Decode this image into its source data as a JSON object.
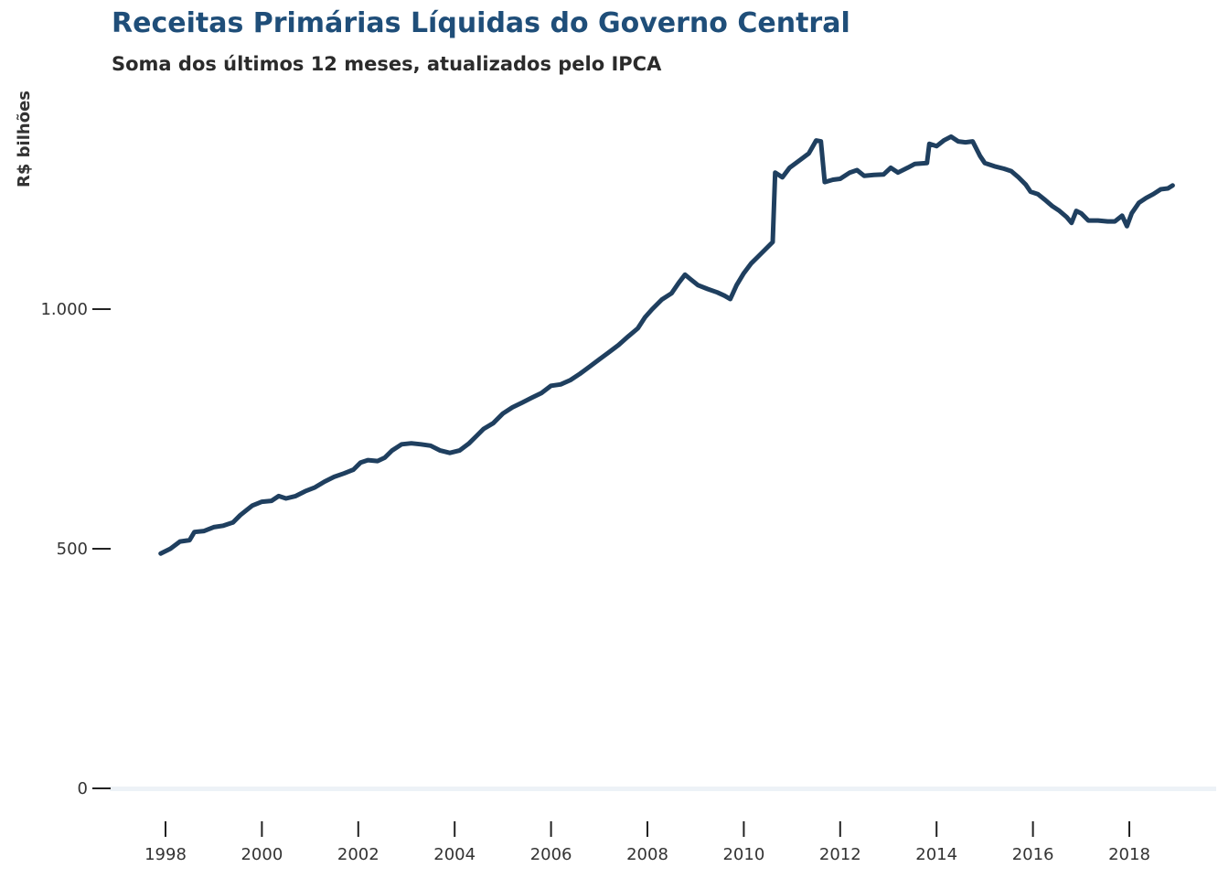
{
  "chart_data": {
    "type": "line",
    "title": "Receitas Primárias Líquidas do Governo Central",
    "subtitle": "Soma dos últimos 12 meses, atualizados pelo IPCA",
    "ylabel": "R$ bilhões",
    "xlabel": "",
    "ylim": [
      0,
      1400
    ],
    "xlim": [
      1997.5,
      2019.0
    ],
    "y_ticks": [
      0,
      500,
      1000
    ],
    "y_tick_labels": [
      "0",
      "500",
      "1.000"
    ],
    "x_ticks": [
      1998,
      2000,
      2002,
      2004,
      2006,
      2008,
      2010,
      2012,
      2014,
      2016,
      2018
    ],
    "x_tick_labels": [
      "1998",
      "2000",
      "2002",
      "2004",
      "2006",
      "2008",
      "2010",
      "2012",
      "2014",
      "2016",
      "2018"
    ],
    "grid": false,
    "legend": "none",
    "series": [
      {
        "color": "#1f3f5f",
        "points": [
          [
            1997.9,
            490
          ],
          [
            1998.1,
            500
          ],
          [
            1998.3,
            515
          ],
          [
            1998.5,
            518
          ],
          [
            1998.6,
            535
          ],
          [
            1998.8,
            537
          ],
          [
            1999.0,
            545
          ],
          [
            1999.2,
            548
          ],
          [
            1999.4,
            555
          ],
          [
            1999.55,
            570
          ],
          [
            1999.65,
            578
          ],
          [
            1999.8,
            590
          ],
          [
            2000.0,
            598
          ],
          [
            2000.2,
            600
          ],
          [
            2000.35,
            610
          ],
          [
            2000.5,
            605
          ],
          [
            2000.7,
            610
          ],
          [
            2000.9,
            620
          ],
          [
            2001.1,
            628
          ],
          [
            2001.3,
            640
          ],
          [
            2001.5,
            650
          ],
          [
            2001.7,
            657
          ],
          [
            2001.9,
            665
          ],
          [
            2002.05,
            680
          ],
          [
            2002.2,
            685
          ],
          [
            2002.4,
            683
          ],
          [
            2002.55,
            690
          ],
          [
            2002.7,
            705
          ],
          [
            2002.9,
            718
          ],
          [
            2003.1,
            720
          ],
          [
            2003.3,
            718
          ],
          [
            2003.5,
            715
          ],
          [
            2003.7,
            705
          ],
          [
            2003.9,
            700
          ],
          [
            2004.1,
            705
          ],
          [
            2004.3,
            720
          ],
          [
            2004.45,
            735
          ],
          [
            2004.6,
            750
          ],
          [
            2004.8,
            762
          ],
          [
            2005.0,
            782
          ],
          [
            2005.2,
            795
          ],
          [
            2005.4,
            805
          ],
          [
            2005.6,
            815
          ],
          [
            2005.8,
            825
          ],
          [
            2006.0,
            840
          ],
          [
            2006.2,
            843
          ],
          [
            2006.4,
            852
          ],
          [
            2006.6,
            865
          ],
          [
            2006.8,
            880
          ],
          [
            2007.0,
            895
          ],
          [
            2007.2,
            910
          ],
          [
            2007.4,
            925
          ],
          [
            2007.6,
            943
          ],
          [
            2007.8,
            960
          ],
          [
            2007.95,
            983
          ],
          [
            2008.1,
            1000
          ],
          [
            2008.3,
            1020
          ],
          [
            2008.5,
            1033
          ],
          [
            2008.65,
            1055
          ],
          [
            2008.78,
            1072
          ],
          [
            2008.9,
            1062
          ],
          [
            2009.05,
            1050
          ],
          [
            2009.25,
            1042
          ],
          [
            2009.45,
            1035
          ],
          [
            2009.6,
            1028
          ],
          [
            2009.72,
            1021
          ],
          [
            2009.85,
            1050
          ],
          [
            2010.0,
            1075
          ],
          [
            2010.15,
            1095
          ],
          [
            2010.3,
            1110
          ],
          [
            2010.45,
            1125
          ],
          [
            2010.6,
            1140
          ],
          [
            2010.65,
            1285
          ],
          [
            2010.8,
            1275
          ],
          [
            2010.95,
            1295
          ],
          [
            2011.15,
            1310
          ],
          [
            2011.35,
            1325
          ],
          [
            2011.5,
            1352
          ],
          [
            2011.6,
            1350
          ],
          [
            2011.68,
            1265
          ],
          [
            2011.85,
            1270
          ],
          [
            2012.0,
            1272
          ],
          [
            2012.2,
            1285
          ],
          [
            2012.35,
            1290
          ],
          [
            2012.5,
            1278
          ],
          [
            2012.7,
            1280
          ],
          [
            2012.9,
            1281
          ],
          [
            2013.05,
            1295
          ],
          [
            2013.2,
            1285
          ],
          [
            2013.4,
            1295
          ],
          [
            2013.55,
            1303
          ],
          [
            2013.8,
            1305
          ],
          [
            2013.85,
            1345
          ],
          [
            2014.0,
            1340
          ],
          [
            2014.15,
            1352
          ],
          [
            2014.3,
            1360
          ],
          [
            2014.45,
            1350
          ],
          [
            2014.6,
            1348
          ],
          [
            2014.75,
            1350
          ],
          [
            2014.9,
            1320
          ],
          [
            2015.0,
            1305
          ],
          [
            2015.2,
            1298
          ],
          [
            2015.4,
            1293
          ],
          [
            2015.55,
            1288
          ],
          [
            2015.7,
            1275
          ],
          [
            2015.85,
            1260
          ],
          [
            2015.95,
            1245
          ],
          [
            2016.1,
            1240
          ],
          [
            2016.25,
            1228
          ],
          [
            2016.4,
            1215
          ],
          [
            2016.55,
            1205
          ],
          [
            2016.7,
            1192
          ],
          [
            2016.8,
            1180
          ],
          [
            2016.9,
            1205
          ],
          [
            2017.0,
            1200
          ],
          [
            2017.15,
            1185
          ],
          [
            2017.35,
            1185
          ],
          [
            2017.55,
            1183
          ],
          [
            2017.7,
            1183
          ],
          [
            2017.85,
            1195
          ],
          [
            2017.95,
            1173
          ],
          [
            2018.05,
            1200
          ],
          [
            2018.2,
            1222
          ],
          [
            2018.35,
            1232
          ],
          [
            2018.5,
            1240
          ],
          [
            2018.65,
            1250
          ],
          [
            2018.8,
            1252
          ],
          [
            2018.9,
            1258
          ]
        ]
      }
    ]
  }
}
